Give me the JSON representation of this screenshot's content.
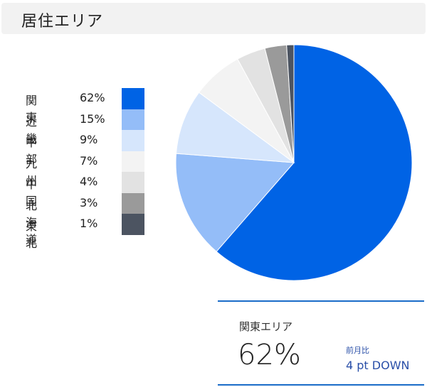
{
  "header": {
    "title": "居住エリア"
  },
  "chart_data": {
    "type": "pie",
    "categories": [
      "関東",
      "近畿",
      "中部",
      "九州",
      "中国",
      "北海道",
      "東北"
    ],
    "values": [
      62,
      15,
      9,
      7,
      4,
      3,
      1
    ],
    "labels": [
      "62%",
      "15%",
      "9%",
      "7%",
      "4%",
      "3%",
      "1%"
    ],
    "colors": [
      "#0063e5",
      "#94bdf8",
      "#d6e6fc",
      "#f3f3f3",
      "#e2e2e2",
      "#9a9a9a",
      "#4c5461"
    ],
    "legend_position": "left",
    "start_angle_deg": 0,
    "direction": "clockwise"
  },
  "stat": {
    "label": "関東エリア",
    "value": "62%",
    "compare_label": "前月比",
    "compare_value": "4 pt DOWN",
    "accent_color": "#1a6cc8"
  }
}
